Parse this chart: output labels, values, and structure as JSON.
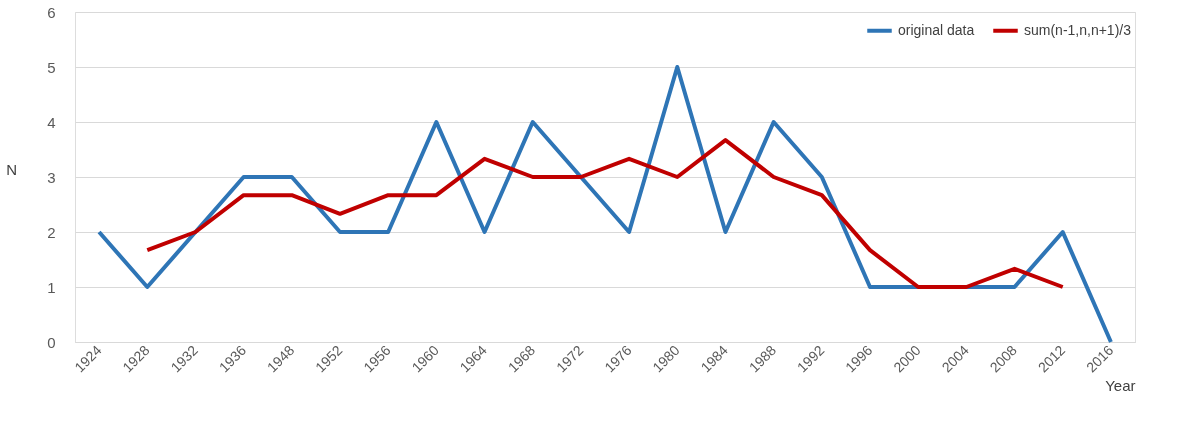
{
  "chart_data": {
    "type": "line",
    "xlabel": "Year",
    "ylabel": "N",
    "categories": [
      "1924",
      "1928",
      "1932",
      "1936",
      "1948",
      "1952",
      "1956",
      "1960",
      "1964",
      "1968",
      "1972",
      "1976",
      "1980",
      "1984",
      "1988",
      "1992",
      "1996",
      "2000",
      "2004",
      "2008",
      "2012",
      "2016"
    ],
    "series": [
      {
        "name": "original data",
        "color": "#2e75b6",
        "values": [
          2,
          1,
          2,
          3,
          3,
          2,
          2,
          4,
          2,
          4,
          3,
          2,
          5,
          2,
          4,
          3,
          1,
          1,
          1,
          1,
          2,
          0
        ]
      },
      {
        "name": "sum(n-1,n,n+1)/3",
        "color": "#c00000",
        "values": [
          null,
          1.67,
          2,
          2.67,
          2.67,
          2.33,
          2.67,
          2.67,
          3.33,
          3,
          3,
          3.33,
          3,
          3.67,
          3,
          2.67,
          1.67,
          1,
          1,
          1.33,
          1,
          null
        ]
      }
    ],
    "ylim": [
      0,
      6
    ],
    "yticks": [
      0,
      1,
      2,
      3,
      4,
      5,
      6
    ],
    "grid": "y",
    "legend": "top right",
    "marker": "none",
    "line_style": "solid"
  }
}
